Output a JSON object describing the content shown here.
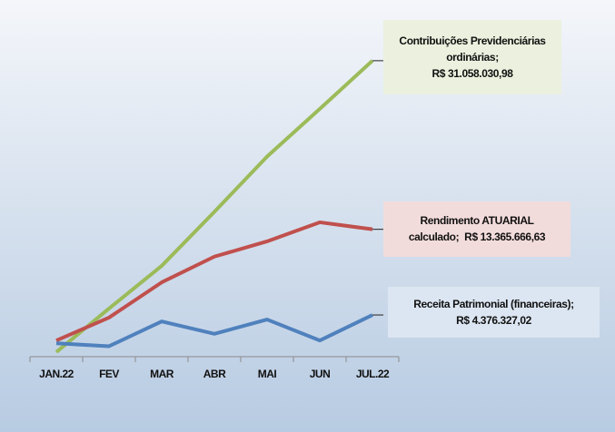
{
  "chart_data": {
    "type": "line",
    "categories": [
      "JAN.22",
      "FEV",
      "MAR",
      "ABR",
      "MAI",
      "JUN",
      "JUL.22"
    ],
    "series": [
      {
        "name": "Contribuições Previdenciárias ordinárias;",
        "color": "#9bbb59",
        "values": [
          480000,
          5050000,
          9530000,
          15200000,
          21000000,
          26000000,
          31058030.98
        ],
        "value_labels": [
          null,
          null,
          null,
          null,
          null,
          null,
          "R$ 31.058.030,98"
        ]
      },
      {
        "name": "Rendimento ATUARIAL calculado;",
        "color": "#c0504d",
        "values": [
          1700000,
          4100000,
          7800000,
          10500000,
          12100000,
          14100000,
          13365666.63
        ],
        "value_labels": [
          null,
          null,
          null,
          null,
          null,
          null,
          "R$ 13.365.666,63"
        ]
      },
      {
        "name": "Receita Patrimonial (financeiras);",
        "color": "#4f81bd",
        "values": [
          1400000,
          1100000,
          3700000,
          2400000,
          3900000,
          1700000,
          4376327.02
        ],
        "value_labels": [
          null,
          null,
          null,
          null,
          null,
          null,
          "R$ 4.376.327,02"
        ]
      }
    ],
    "ylim": [
      0,
      34000000
    ]
  }
}
